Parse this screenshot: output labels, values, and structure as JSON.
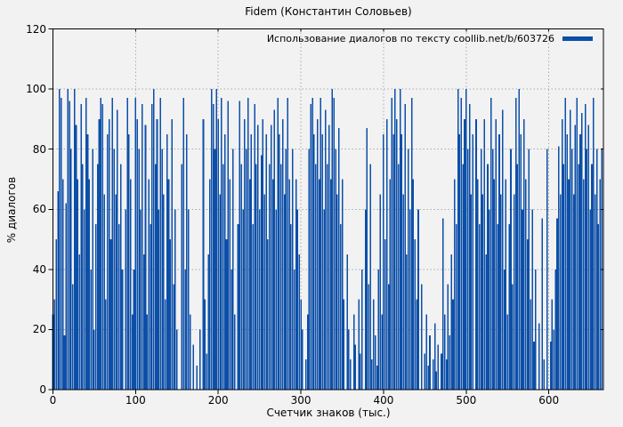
{
  "title": "Fidem (Константин Соловьев)",
  "legend": {
    "label": "Использование диалогов по тексту coollib.net/b/603726"
  },
  "axes": {
    "ylabel": "% диалогов",
    "xlabel": "Счетчик знаков (тыс.)",
    "y_ticks": [
      0,
      20,
      40,
      60,
      80,
      100,
      120
    ],
    "x_ticks": [
      0,
      100,
      200,
      300,
      400,
      500,
      600
    ],
    "ylim": [
      0,
      120
    ],
    "xlim": [
      0,
      666
    ],
    "grid": "dotted"
  },
  "colors": {
    "bar": "#0c4fa8",
    "grid": "#ababab",
    "border": "#000000",
    "background": "#f2f2f2",
    "text": "#000000"
  },
  "chart_data": {
    "type": "bar",
    "style": "impulses",
    "title": "Fidem (Константин Соловьев)",
    "series_name": "Использование диалогов по тексту coollib.net/b/603726",
    "xlabel": "Счетчик знаков (тыс.)",
    "ylabel": "% диалогов",
    "xlim": [
      0,
      666
    ],
    "ylim": [
      0,
      120
    ],
    "legend_position": "top-right-inside",
    "x_start": 0,
    "x_step": 2,
    "values": [
      25,
      30,
      50,
      66,
      100,
      97,
      70,
      18,
      62,
      100,
      96,
      80,
      35,
      100,
      88,
      70,
      45,
      95,
      75,
      60,
      97,
      85,
      70,
      40,
      80,
      20,
      55,
      75,
      90,
      97,
      95,
      65,
      30,
      85,
      90,
      50,
      97,
      80,
      65,
      93,
      55,
      75,
      40,
      0,
      60,
      97,
      85,
      70,
      25,
      40,
      97,
      90,
      80,
      60,
      95,
      45,
      88,
      25,
      70,
      55,
      95,
      100,
      75,
      90,
      60,
      97,
      80,
      65,
      30,
      85,
      70,
      50,
      90,
      35,
      60,
      20,
      0,
      0,
      75,
      97,
      40,
      85,
      60,
      25,
      0,
      15,
      0,
      8,
      0,
      20,
      0,
      90,
      30,
      12,
      45,
      70,
      100,
      95,
      80,
      100,
      90,
      65,
      97,
      75,
      85,
      50,
      96,
      70,
      40,
      80,
      25,
      0,
      55,
      96,
      75,
      60,
      90,
      80,
      97,
      70,
      85,
      55,
      95,
      75,
      88,
      60,
      78,
      90,
      65,
      85,
      50,
      75,
      88,
      70,
      93,
      60,
      97,
      85,
      75,
      90,
      65,
      80,
      97,
      70,
      55,
      80,
      40,
      70,
      60,
      45,
      30,
      20,
      0,
      10,
      25,
      80,
      95,
      97,
      85,
      75,
      90,
      70,
      97,
      85,
      60,
      93,
      75,
      88,
      70,
      100,
      97,
      80,
      65,
      87,
      55,
      70,
      30,
      0,
      45,
      20,
      10,
      0,
      25,
      15,
      0,
      30,
      12,
      40,
      0,
      60,
      87,
      35,
      75,
      10,
      30,
      18,
      8,
      40,
      65,
      25,
      85,
      50,
      90,
      35,
      70,
      97,
      85,
      100,
      90,
      75,
      100,
      85,
      65,
      95,
      45,
      80,
      60,
      97,
      70,
      50,
      30,
      60,
      0,
      35,
      0,
      12,
      25,
      8,
      18,
      0,
      10,
      22,
      6,
      15,
      0,
      12,
      57,
      25,
      10,
      35,
      18,
      45,
      30,
      70,
      55,
      100,
      85,
      97,
      75,
      90,
      100,
      80,
      95,
      65,
      85,
      0,
      90,
      70,
      55,
      80,
      65,
      90,
      45,
      75,
      60,
      97,
      80,
      70,
      90,
      55,
      85,
      65,
      93,
      40,
      70,
      25,
      55,
      80,
      35,
      65,
      97,
      75,
      100,
      85,
      60,
      90,
      70,
      50,
      80,
      30,
      60,
      16,
      40,
      0,
      22,
      0,
      57,
      10,
      0,
      80,
      0,
      16,
      30,
      20,
      40,
      57,
      81,
      65,
      90,
      75,
      97,
      85,
      70,
      93,
      80,
      65,
      88,
      97,
      75,
      85,
      92,
      70,
      95,
      80,
      88,
      60,
      75,
      97,
      65,
      80,
      55,
      70,
      80
    ]
  }
}
